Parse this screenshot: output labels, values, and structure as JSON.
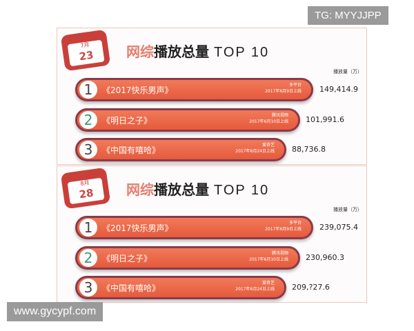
{
  "watermark_top": "TG: MYYJJPP",
  "watermark_bottom": "www.gycypf.com",
  "panels": [
    {
      "month": "7月",
      "day": "23",
      "title_hl": "网综",
      "title_main": "播放总量",
      "title_en": "TOP 10",
      "unit": "播放量（万）",
      "rows": [
        {
          "rank": "1",
          "name": "《2017快乐男声》",
          "platform": "多平台",
          "date": "2017年6月9日上线",
          "value": "149,414.9"
        },
        {
          "rank": "2",
          "name": "《明日之子》",
          "platform": "腾讯视频",
          "date": "2017年6月10日上线",
          "value": "101,991.6"
        },
        {
          "rank": "3",
          "name": "《中国有嘻哈》",
          "platform": "爱奇艺",
          "date": "2017年6月24日上线",
          "value": "88,736.8"
        }
      ]
    },
    {
      "month": "8月",
      "day": "28",
      "title_hl": "网综",
      "title_main": "播放总量",
      "title_en": "TOP 10",
      "unit": "播放量（万）",
      "rows": [
        {
          "rank": "1",
          "name": "《2017快乐男声》",
          "platform": "多平台",
          "date": "2017年6月9日上线",
          "value": "239,075.4"
        },
        {
          "rank": "2",
          "name": "《明日之子》",
          "platform": "腾讯视频",
          "date": "2017年6月10日上线",
          "value": "230,960.3"
        },
        {
          "rank": "3",
          "name": "《中国有嘻哈》",
          "platform": "爱奇艺",
          "date": "2017年6月24日上线",
          "value": "209,?27.6"
        }
      ]
    }
  ]
}
